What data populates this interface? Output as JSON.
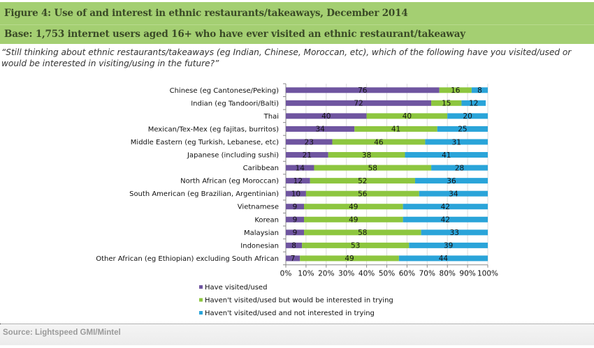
{
  "header": {
    "title": "Figure 4: Use of and interest in ethnic restaurants/takeaways, December 2014",
    "base": "Base: 1,753 internet users aged 16+ who have ever visited an ethnic restaurant/takeaway"
  },
  "question": "“Still thinking about ethnic restaurants/takeaways (eg Indian, Chinese, Moroccan, etc), which of the following have you visited/used or would be interested in visiting/using in the future?”",
  "footer": {
    "source": "Source: Lightspeed GMI/Mintel"
  },
  "chart_data": {
    "type": "bar",
    "orientation": "horizontal",
    "stacked": "percent",
    "title": "Figure 4: Use of and interest in ethnic restaurants/takeaways, December 2014",
    "xlabel": "",
    "ylabel": "",
    "xlim": [
      0,
      100
    ],
    "x_ticks": [
      "0%",
      "10%",
      "20%",
      "30%",
      "40%",
      "50%",
      "60%",
      "70%",
      "80%",
      "90%",
      "100%"
    ],
    "grid": true,
    "legend_position": "bottom",
    "categories": [
      "Chinese (eg Cantonese/Peking)",
      "Indian (eg Tandoori/Balti)",
      "Thai",
      "Mexican/Tex-Mex (eg fajitas, burritos)",
      "Middle Eastern (eg Turkish, Lebanese, etc)",
      "Japanese (including sushi)",
      "Caribbean",
      "North African (eg Moroccan)",
      "South American (eg Brazilian, Argentinian)",
      "Vietnamese",
      "Korean",
      "Malaysian",
      "Indonesian",
      "Other African (eg Ethiopian) excluding South African"
    ],
    "series": [
      {
        "name": "Have visited/used",
        "color": "#6f55a0",
        "values": [
          76,
          72,
          40,
          34,
          23,
          21,
          14,
          12,
          10,
          9,
          9,
          9,
          8,
          7
        ]
      },
      {
        "name": "Haven't visited/used but would be interested in trying",
        "color": "#8dc63f",
        "values": [
          16,
          15,
          40,
          41,
          46,
          38,
          58,
          52,
          56,
          49,
          49,
          58,
          53,
          49
        ]
      },
      {
        "name": "Haven't visited/used and not interested in trying",
        "color": "#2aa4d9",
        "values": [
          8,
          12,
          20,
          25,
          31,
          41,
          28,
          36,
          34,
          42,
          42,
          33,
          39,
          44
        ]
      }
    ]
  }
}
